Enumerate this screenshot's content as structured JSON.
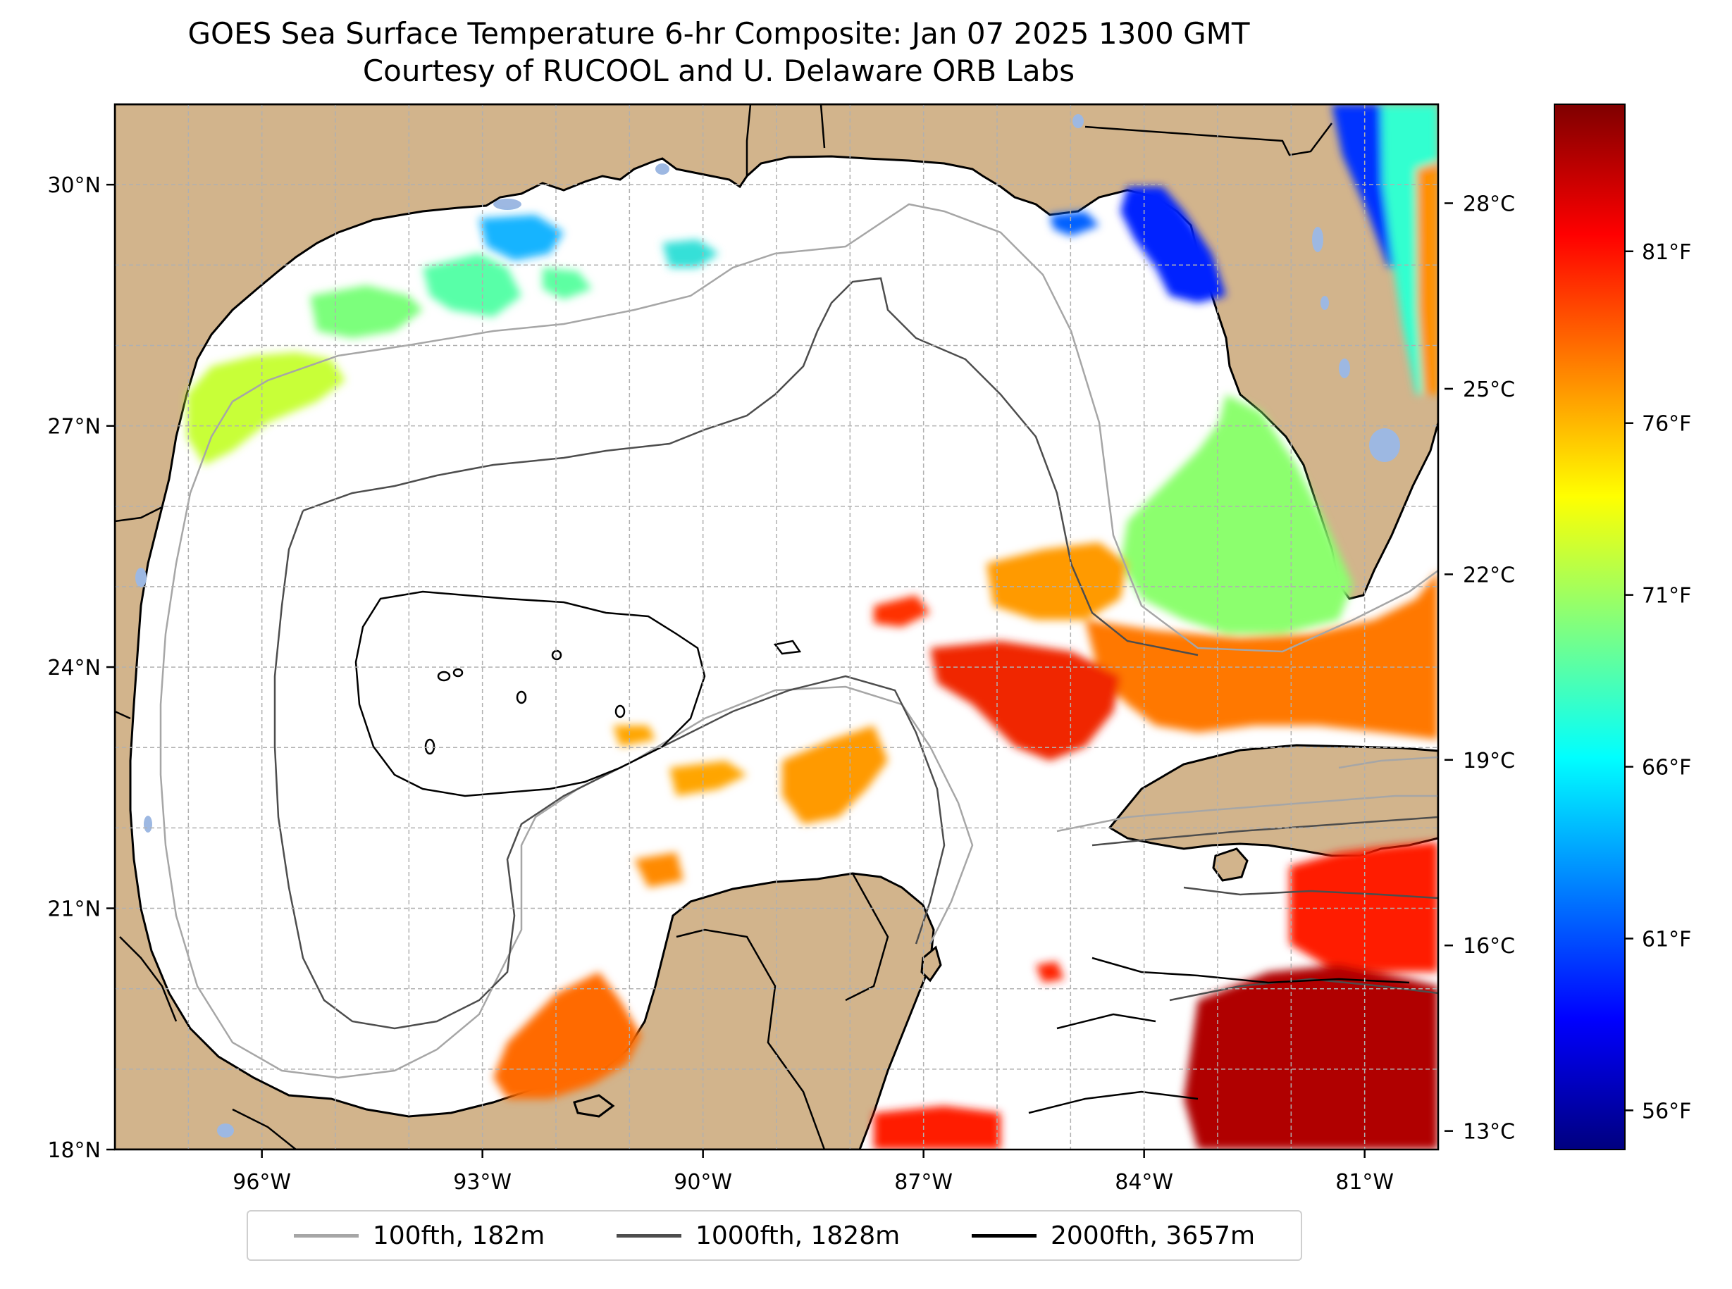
{
  "title": {
    "line1": "GOES Sea Surface Temperature 6-hr Composite: Jan 07 2025 1300 GMT",
    "line2": "Courtesy of RUCOOL and U. Delaware ORB Labs"
  },
  "map": {
    "lon_range": [
      -98.0,
      -80.0
    ],
    "lat_range": [
      18.0,
      31.0
    ],
    "lon_ticks": [
      {
        "value": -96,
        "label": "96°W"
      },
      {
        "value": -93,
        "label": "93°W"
      },
      {
        "value": -90,
        "label": "90°W"
      },
      {
        "value": -87,
        "label": "87°W"
      },
      {
        "value": -84,
        "label": "84°W"
      },
      {
        "value": -81,
        "label": "81°W"
      }
    ],
    "lat_ticks": [
      {
        "value": 18,
        "label": "18°N"
      },
      {
        "value": 21,
        "label": "21°N"
      },
      {
        "value": 24,
        "label": "24°N"
      },
      {
        "value": 27,
        "label": "27°N"
      },
      {
        "value": 30,
        "label": "30°N"
      }
    ],
    "gridlines": true,
    "colors": {
      "land": "#d2b48c",
      "ocean_no_data": "#ffffff",
      "lakes": "#9db8e2",
      "grid": "#b0b0b0"
    }
  },
  "colorbar": {
    "colormap": "jet",
    "range_c": [
      12.7,
      29.6
    ],
    "celsius_ticks": [
      {
        "value": 13,
        "label": "13°C"
      },
      {
        "value": 16,
        "label": "16°C"
      },
      {
        "value": 19,
        "label": "19°C"
      },
      {
        "value": 22,
        "label": "22°C"
      },
      {
        "value": 25,
        "label": "25°C"
      },
      {
        "value": 28,
        "label": "28°C"
      }
    ],
    "fahrenheit_ticks": [
      {
        "value": 56,
        "label": "56°F"
      },
      {
        "value": 61,
        "label": "61°F"
      },
      {
        "value": 66,
        "label": "66°F"
      },
      {
        "value": 71,
        "label": "71°F"
      },
      {
        "value": 76,
        "label": "76°F"
      },
      {
        "value": 81,
        "label": "81°F"
      }
    ]
  },
  "legend": {
    "items": [
      {
        "label": "100fth, 182m",
        "color": "#a6a6a6"
      },
      {
        "label": "1000fth, 1828m",
        "color": "#4d4d4d"
      },
      {
        "label": "2000fth, 3657m",
        "color": "#000000"
      }
    ]
  }
}
